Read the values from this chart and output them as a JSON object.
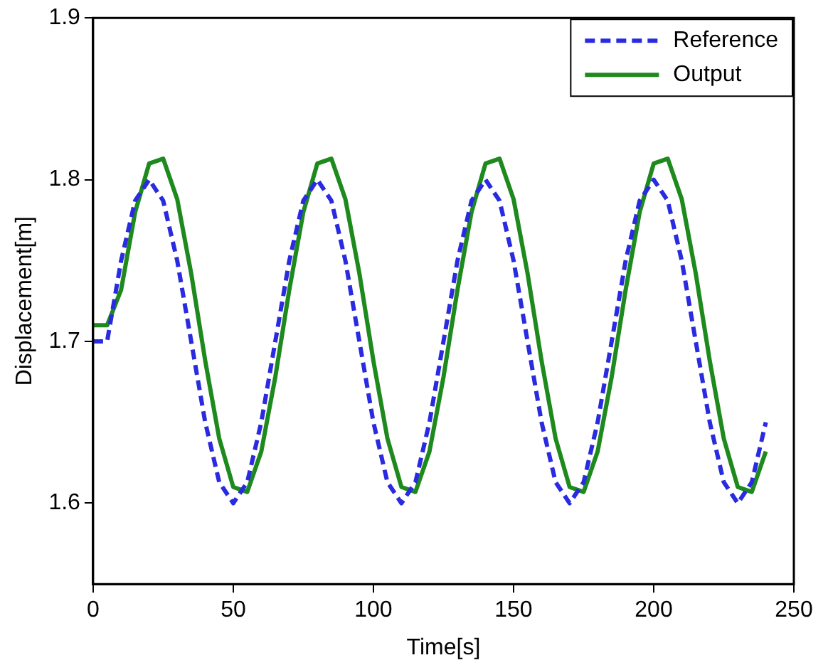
{
  "chart_data": {
    "type": "line",
    "xlabel": "Time[s]",
    "ylabel": "Displacement[m]",
    "xlim": [
      0,
      250
    ],
    "xticks": [
      0,
      50,
      100,
      150,
      200,
      250
    ],
    "ylim": [
      1.55,
      1.9
    ],
    "yticks": [
      1.6,
      1.7,
      1.8,
      1.9
    ],
    "grid": false,
    "legend": "top right",
    "marker": "none",
    "x": [
      0,
      5,
      10,
      15,
      20,
      25,
      30,
      35,
      40,
      45,
      50,
      55,
      60,
      65,
      70,
      75,
      80,
      85,
      90,
      95,
      100,
      105,
      110,
      115,
      120,
      125,
      130,
      135,
      140,
      145,
      150,
      155,
      160,
      165,
      170,
      175,
      180,
      185,
      190,
      195,
      200,
      205,
      210,
      215,
      220,
      225,
      230,
      235,
      240
    ],
    "series": [
      {
        "name": "Reference",
        "color": "#2a2ae0",
        "line_style": "dashed",
        "values": [
          1.7,
          1.7,
          1.75,
          1.787,
          1.8,
          1.787,
          1.75,
          1.7,
          1.65,
          1.613,
          1.6,
          1.613,
          1.65,
          1.7,
          1.75,
          1.787,
          1.8,
          1.787,
          1.75,
          1.7,
          1.65,
          1.613,
          1.6,
          1.613,
          1.65,
          1.7,
          1.75,
          1.787,
          1.8,
          1.787,
          1.75,
          1.7,
          1.65,
          1.613,
          1.6,
          1.613,
          1.65,
          1.7,
          1.75,
          1.787,
          1.8,
          1.787,
          1.75,
          1.7,
          1.65,
          1.613,
          1.6,
          1.613,
          1.65
        ]
      },
      {
        "name": "Output",
        "color": "#1e8a1e",
        "line_style": "solid",
        "values": [
          1.71,
          1.71,
          1.732,
          1.78,
          1.81,
          1.813,
          1.788,
          1.742,
          1.688,
          1.64,
          1.61,
          1.607,
          1.632,
          1.678,
          1.732,
          1.78,
          1.81,
          1.813,
          1.788,
          1.742,
          1.688,
          1.64,
          1.61,
          1.607,
          1.632,
          1.678,
          1.732,
          1.78,
          1.81,
          1.813,
          1.788,
          1.742,
          1.688,
          1.64,
          1.61,
          1.607,
          1.632,
          1.678,
          1.732,
          1.78,
          1.81,
          1.813,
          1.788,
          1.742,
          1.688,
          1.64,
          1.61,
          1.607,
          1.632
        ]
      }
    ]
  }
}
